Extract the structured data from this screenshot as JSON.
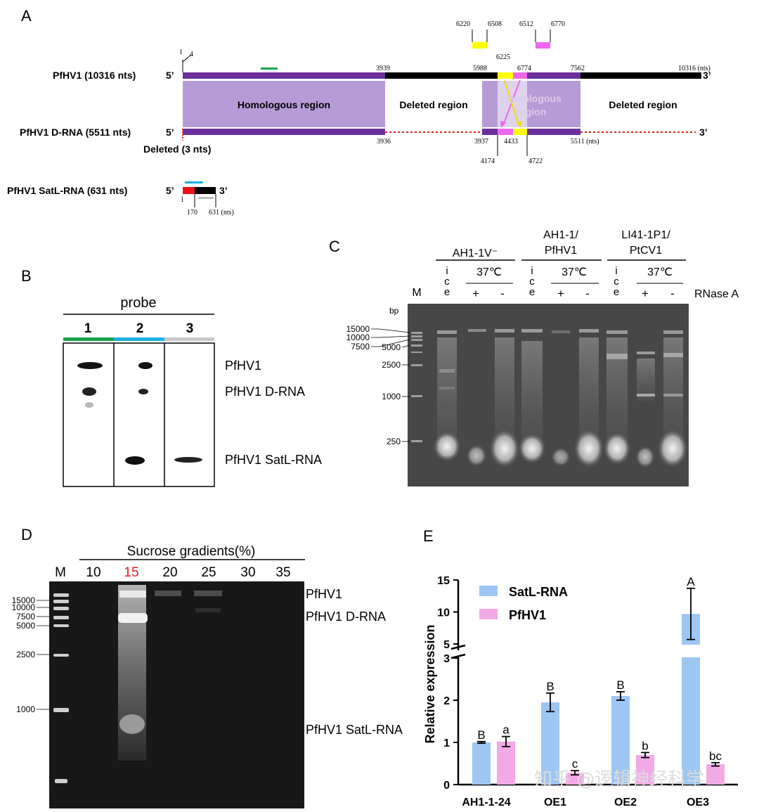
{
  "panels": {
    "a": "A",
    "b": "B",
    "c": "C",
    "d": "D",
    "e": "E"
  },
  "panel_a": {
    "rows": {
      "pfhv1": "PfHV1 (10316 nts)",
      "drna": "PfHV1 D-RNA (5511 nts)",
      "satl": "PfHV1 SatL-RNA (631 nts)"
    },
    "five_prime": "5’",
    "three_prime": "3’",
    "regions": {
      "homologous": "Homologous region",
      "deleted": "Deleted region",
      "homologous2_a": "Homologous",
      "homologous2_b": "region"
    },
    "deleted_3": "Deleted (3 nts)",
    "positions": {
      "p1": "1",
      "p4": "4",
      "p3939": "3939",
      "p5988": "5988",
      "p6225": "6225",
      "p6774": "6774",
      "p7562": "7562",
      "p10316": "10316 (nts)",
      "p6220": "6220",
      "p6508": "6508",
      "p6512": "6512",
      "p6770": "6770",
      "p3936": "3936",
      "p3937": "3937",
      "p4433": "4433",
      "p5511": "5511 (nts)",
      "p4174": "4174",
      "p4722": "4722",
      "s1": "1",
      "s170": "170",
      "s631": "631 (nts)"
    }
  },
  "panel_b": {
    "title": "probe",
    "lanes": [
      "1",
      "2",
      "3"
    ],
    "labels": [
      "PfHV1",
      "PfHV1 D-RNA",
      "PfHV1 SatL-RNA"
    ]
  },
  "panel_c": {
    "groups": [
      "AH1-1V⁻",
      "AH1-1/",
      "PfHV1",
      "LI41-1P1/",
      "PtCV1"
    ],
    "ice": [
      "i",
      "c",
      "e"
    ],
    "temp": "37℃",
    "plus": "+",
    "minus": "-",
    "m": "M",
    "rnase": "RNase A",
    "bp": "bp",
    "ladder": [
      "15000",
      "10000",
      "7500",
      "5000",
      "2500",
      "1000",
      "250"
    ]
  },
  "panel_d": {
    "title": "Sucrose gradients(%)",
    "m": "M",
    "fractions": [
      "10",
      "15",
      "20",
      "25",
      "30",
      "35"
    ],
    "highlight_color": "#e0201b",
    "ladder": [
      "15000",
      "10000",
      "7500",
      "5000",
      "2500",
      "1000"
    ],
    "labels": [
      "PfHV1",
      "PfHV1 D-RNA",
      "PfHV1 SatL-RNA"
    ]
  },
  "chart_data": {
    "type": "bar",
    "ylabel": "Relative expression",
    "categories": [
      "AH1-1-24",
      "OE1",
      "OE2",
      "OE3"
    ],
    "y_axis": "broken between 3 and 5",
    "yticks_lower": [
      "0",
      "1",
      "2",
      "3"
    ],
    "yticks_upper": [
      "5",
      "10",
      "15"
    ],
    "legend_position": "top-left",
    "series": [
      {
        "name": "SatL-RNA",
        "color": "#9ec6f3",
        "values": [
          1.0,
          1.95,
          2.1,
          9.7
        ],
        "errors": [
          0.02,
          0.22,
          0.1,
          4.0
        ],
        "letters": [
          "B",
          "B",
          "B",
          "A"
        ]
      },
      {
        "name": "PfHV1",
        "color": "#f3a9e6",
        "values": [
          1.02,
          0.28,
          0.7,
          0.48
        ],
        "errors": [
          0.12,
          0.05,
          0.06,
          0.04
        ],
        "letters": [
          "a",
          "c",
          "b",
          "bc"
        ]
      }
    ]
  },
  "watermark": "知乎 @逻辑神经科学"
}
